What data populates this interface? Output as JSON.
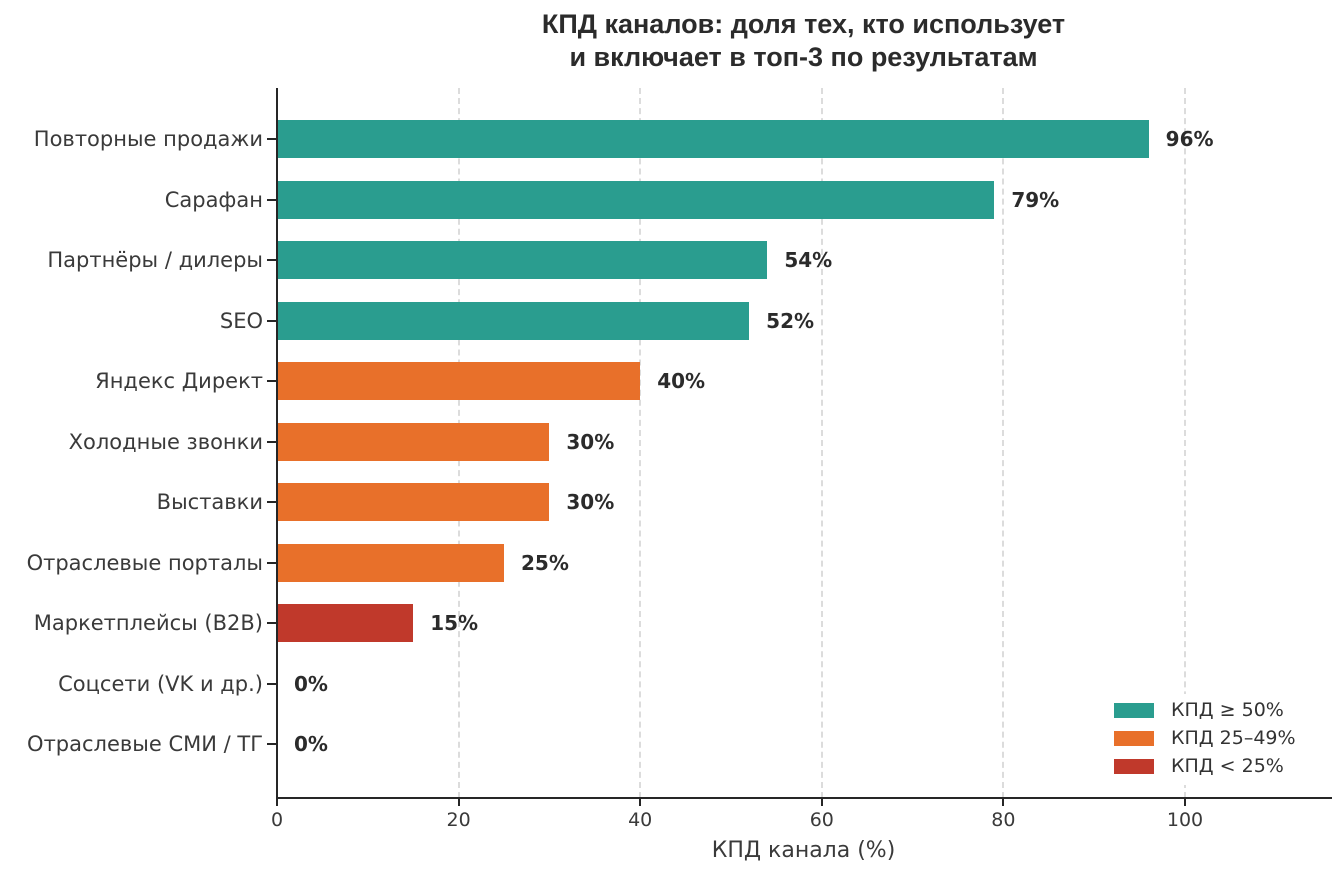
{
  "chart_data": {
    "type": "bar",
    "orientation": "horizontal",
    "title": "КПД каналов: доля тех, кто использует и включает в топ-3 по результатам",
    "title_lines": [
      "КПД каналов: доля тех, кто использует",
      "и включает в топ-3 по результатам"
    ],
    "xlabel": "КПД канала (%)",
    "xlim": [
      0,
      116
    ],
    "xticks": [
      0,
      20,
      40,
      60,
      80,
      100
    ],
    "grid": "vertical-dashed",
    "categories": [
      "Повторные продажи",
      "Сарафан",
      "Партнёры / дилеры",
      "SEO",
      "Яндекс Директ",
      "Холодные звонки",
      "Выставки",
      "Отраслевые порталы",
      "Маркетплейсы (B2B)",
      "Соцсети (VK и др.)",
      "Отраслевые СМИ / ТГ"
    ],
    "values": [
      96,
      79,
      54,
      52,
      40,
      30,
      30,
      25,
      15,
      0,
      0
    ],
    "value_labels": [
      "96%",
      "79%",
      "54%",
      "52%",
      "40%",
      "30%",
      "30%",
      "25%",
      "15%",
      "0%",
      "0%"
    ],
    "bar_groups": [
      "high",
      "high",
      "high",
      "high",
      "mid",
      "mid",
      "mid",
      "mid",
      "low",
      "low",
      "low"
    ],
    "colors": {
      "high": "#2a9d8f",
      "mid": "#e8702a",
      "low": "#c0392b"
    },
    "legend": {
      "position": "lower right",
      "entries": [
        {
          "label": "КПД ≥ 50%",
          "color": "#2a9d8f"
        },
        {
          "label": "КПД 25–49%",
          "color": "#e8702a"
        },
        {
          "label": "КПД < 25%",
          "color": "#c0392b"
        }
      ]
    }
  }
}
